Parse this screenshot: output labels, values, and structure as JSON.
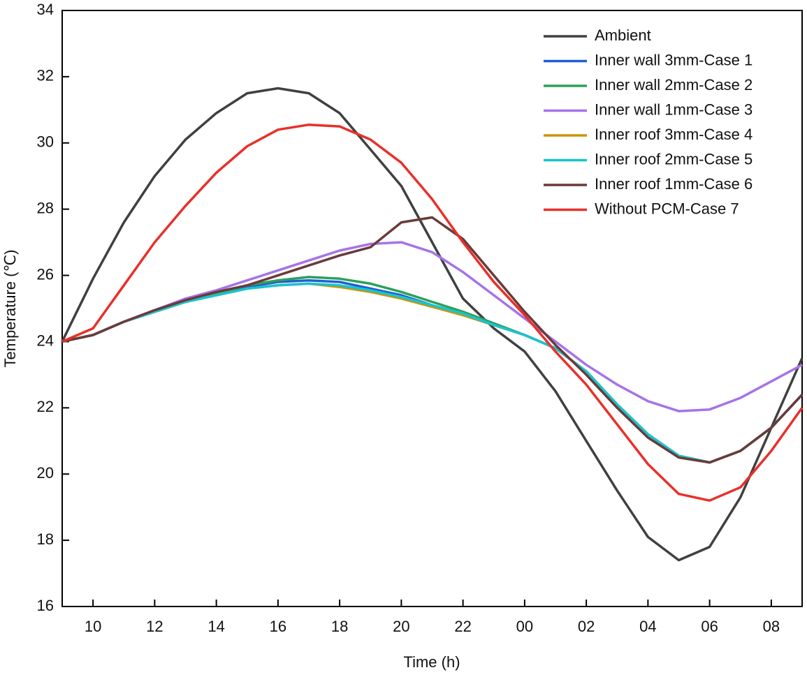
{
  "chart_data": {
    "type": "line",
    "x_label": "Time (h)",
    "y_label": "Temperature (℃)",
    "x": [
      9,
      10,
      11,
      12,
      13,
      14,
      15,
      16,
      17,
      18,
      19,
      20,
      21,
      22,
      23,
      24,
      25,
      26,
      27,
      28,
      29,
      30,
      31,
      32,
      33
    ],
    "xlim": [
      9,
      33
    ],
    "xticks": [
      10,
      12,
      14,
      16,
      18,
      20,
      22,
      {
        "value": 24,
        "label": "00"
      },
      {
        "value": 26,
        "label": "02"
      },
      {
        "value": 28,
        "label": "04"
      },
      {
        "value": 30,
        "label": "06"
      },
      {
        "value": 32,
        "label": "08"
      }
    ],
    "ylim": [
      16,
      34
    ],
    "yticks": [
      16,
      18,
      20,
      22,
      24,
      26,
      28,
      30,
      32,
      34
    ],
    "legend": "upper right",
    "series": [
      {
        "name": "Ambient",
        "color": "#404040",
        "values": [
          24.0,
          25.9,
          27.6,
          29.0,
          30.1,
          30.9,
          31.5,
          31.65,
          31.5,
          30.9,
          29.8,
          28.7,
          27.0,
          25.3,
          24.4,
          23.7,
          22.5,
          21.0,
          19.5,
          18.1,
          17.4,
          17.8,
          19.3,
          21.4,
          23.5
        ]
      },
      {
        "name": "Inner wall 3mm-Case 1",
        "color": "#1f5fd6",
        "values": [
          24.0,
          24.2,
          24.6,
          24.9,
          25.2,
          25.45,
          25.65,
          25.8,
          25.85,
          25.8,
          25.6,
          25.4,
          25.1,
          24.8,
          24.5,
          24.2,
          23.8,
          23.1,
          22.1,
          21.2,
          20.55,
          20.35,
          20.7,
          21.4,
          22.4
        ]
      },
      {
        "name": "Inner wall 2mm-Case 2",
        "color": "#2ca05a",
        "values": [
          24.0,
          24.2,
          24.6,
          24.9,
          25.2,
          25.45,
          25.7,
          25.85,
          25.95,
          25.9,
          25.75,
          25.5,
          25.2,
          24.9,
          24.55,
          24.2,
          23.8,
          23.1,
          22.1,
          21.2,
          20.55,
          20.35,
          20.7,
          21.4,
          22.4
        ]
      },
      {
        "name": "Inner wall 1mm-Case 3",
        "color": "#a673e8",
        "values": [
          24.0,
          24.2,
          24.6,
          24.95,
          25.3,
          25.55,
          25.85,
          26.15,
          26.45,
          26.75,
          26.95,
          27.0,
          26.7,
          26.1,
          25.4,
          24.7,
          24.0,
          23.3,
          22.7,
          22.2,
          21.9,
          21.95,
          22.3,
          22.8,
          23.3
        ]
      },
      {
        "name": "Inner roof 3mm-Case 4",
        "color": "#c8960a",
        "values": [
          24.0,
          24.2,
          24.6,
          24.9,
          25.2,
          25.4,
          25.6,
          25.7,
          25.75,
          25.65,
          25.5,
          25.3,
          25.05,
          24.8,
          24.5,
          24.2,
          23.8,
          23.1,
          22.1,
          21.2,
          20.55,
          20.35,
          20.7,
          21.4,
          22.4
        ]
      },
      {
        "name": "Inner roof 2mm-Case 5",
        "color": "#17c4d0",
        "values": [
          24.0,
          24.2,
          24.6,
          24.9,
          25.2,
          25.4,
          25.6,
          25.7,
          25.75,
          25.7,
          25.55,
          25.35,
          25.1,
          24.85,
          24.5,
          24.2,
          23.8,
          23.1,
          22.1,
          21.2,
          20.55,
          20.35,
          20.7,
          21.4,
          22.4
        ]
      },
      {
        "name": "Inner roof 1mm-Case 6",
        "color": "#6b3a3a",
        "values": [
          24.0,
          24.2,
          24.6,
          24.95,
          25.25,
          25.5,
          25.7,
          26.0,
          26.3,
          26.6,
          26.85,
          27.6,
          27.75,
          27.1,
          26.0,
          24.9,
          23.9,
          23.0,
          22.0,
          21.1,
          20.5,
          20.35,
          20.7,
          21.4,
          22.4
        ]
      },
      {
        "name": "Without PCM-Case 7",
        "color": "#e8302a",
        "values": [
          24.0,
          24.4,
          25.7,
          27.0,
          28.1,
          29.1,
          29.9,
          30.4,
          30.55,
          30.5,
          30.1,
          29.4,
          28.3,
          27.0,
          25.8,
          24.8,
          23.7,
          22.7,
          21.5,
          20.3,
          19.4,
          19.2,
          19.6,
          20.7,
          22.0
        ]
      }
    ]
  }
}
